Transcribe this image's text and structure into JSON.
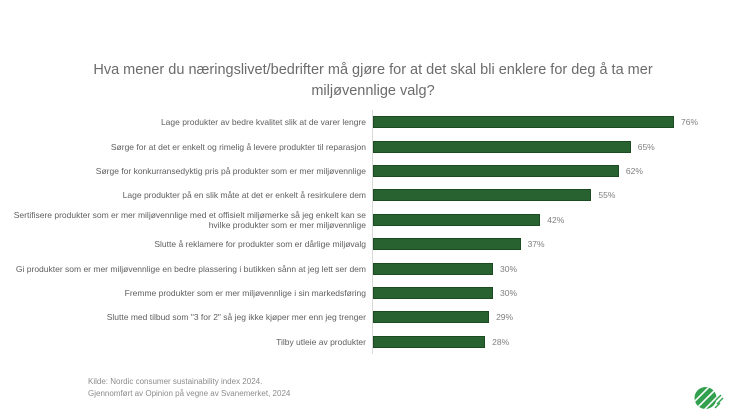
{
  "chart_data": {
    "type": "bar",
    "orientation": "horizontal",
    "title": "Hva mener du næringslivet/bedrifter må gjøre for at det skal bli enklere for deg å ta mer miljøvennlige valg?",
    "categories": [
      "Lage produkter av bedre kvalitet slik at de varer lengre",
      "Sørge for at det er enkelt og rimelig å levere produkter til reparasjon",
      "Sørge for konkurransedyktig pris på produkter som er mer miljøvennlige",
      "Lage produkter på en slik måte at det er enkelt å resirkulere dem",
      "Sertifisere produkter som er mer miljøvennlige med et offisielt miljømerke så jeg enkelt kan se hvilke produkter som er mer miljøvennlige",
      "Slutte å reklamere for produkter som er dårlige miljøvalg",
      "Gi produkter som er mer miljøvennlige en bedre plassering i butikken sånn at jeg lett ser dem",
      "Fremme produkter som er mer miljøvennlige i sin markedsføring",
      "Slutte med tilbud som \"3 for 2\" så jeg ikke kjøper mer enn jeg trenger",
      "Tilby utleie av produkter"
    ],
    "values": [
      76,
      65,
      62,
      55,
      42,
      37,
      30,
      30,
      29,
      28
    ],
    "value_suffix": "%",
    "xlabel": "",
    "ylabel": "",
    "xlim": [
      0,
      100
    ],
    "grid": false,
    "legend": false,
    "bar_color": "#286231",
    "bar_border_color": "#1b4a23",
    "axis_line_color": "#d9d9d9"
  },
  "footer": {
    "line1": "Kilde: Nordic consumer sustainability index 2024.",
    "line2": "Gjennomført av Opinion på vegne av Svanemerket, 2024"
  },
  "logo": {
    "name": "Svanemerket (Nordic Swan Ecolabel)",
    "color": "#33a04f"
  }
}
